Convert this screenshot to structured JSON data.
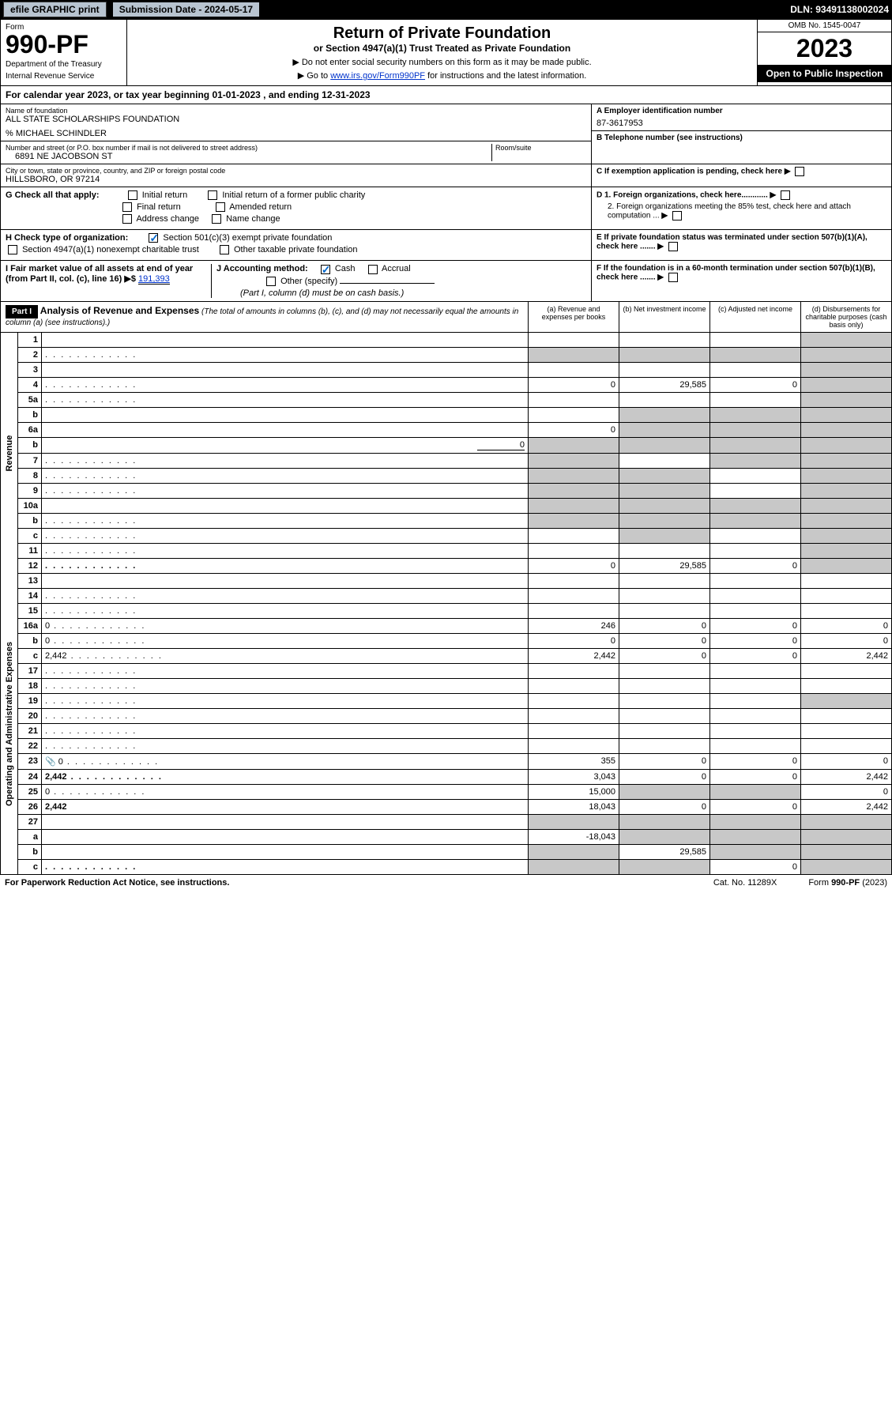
{
  "topbar": {
    "efile": "efile GRAPHIC print",
    "submission": "Submission Date - 2024-05-17",
    "dln": "DLN: 93491138002024"
  },
  "header": {
    "form_word": "Form",
    "form_num": "990-PF",
    "dept": "Department of the Treasury",
    "irs": "Internal Revenue Service",
    "title": "Return of Private Foundation",
    "subtitle": "or Section 4947(a)(1) Trust Treated as Private Foundation",
    "instr1": "▶ Do not enter social security numbers on this form as it may be made public.",
    "instr2_pre": "▶ Go to ",
    "instr2_link": "www.irs.gov/Form990PF",
    "instr2_post": " for instructions and the latest information.",
    "omb": "OMB No. 1545-0047",
    "year": "2023",
    "open": "Open to Public Inspection"
  },
  "cal_year": "For calendar year 2023, or tax year beginning 01-01-2023                          , and ending 12-31-2023",
  "info": {
    "name_label": "Name of foundation",
    "name": "ALL STATE SCHOLARSHIPS FOUNDATION",
    "care_of": "% MICHAEL SCHINDLER",
    "street_label": "Number and street (or P.O. box number if mail is not delivered to street address)",
    "street": "6891 NE JACOBSON ST",
    "room_label": "Room/suite",
    "city_label": "City or town, state or province, country, and ZIP or foreign postal code",
    "city": "HILLSBORO, OR  97214",
    "a_label": "A Employer identification number",
    "a_val": "87-3617953",
    "b_label": "B Telephone number (see instructions)",
    "c_label": "C If exemption application is pending, check here",
    "d1": "D 1. Foreign organizations, check here............",
    "d2": "2. Foreign organizations meeting the 85% test, check here and attach computation ...",
    "e_label": "E  If private foundation status was terminated under section 507(b)(1)(A), check here .......",
    "f_label": "F  If the foundation is in a 60-month termination under section 507(b)(1)(B), check here ......."
  },
  "g": {
    "label": "G Check all that apply:",
    "initial": "Initial return",
    "initial_former": "Initial return of a former public charity",
    "final": "Final return",
    "amended": "Amended return",
    "address": "Address change",
    "name": "Name change"
  },
  "h": {
    "label": "H Check type of organization:",
    "501c3": "Section 501(c)(3) exempt private foundation",
    "4947": "Section 4947(a)(1) nonexempt charitable trust",
    "other_taxable": "Other taxable private foundation"
  },
  "i": {
    "label": "I Fair market value of all assets at end of year (from Part II, col. (c), line 16)",
    "arrow": "▶$",
    "val": "191,393"
  },
  "j": {
    "label": "J Accounting method:",
    "cash": "Cash",
    "accrual": "Accrual",
    "other": "Other (specify)",
    "note": "(Part I, column (d) must be on cash basis.)"
  },
  "part1": {
    "label": "Part I",
    "title": "Analysis of Revenue and Expenses",
    "title_note": " (The total of amounts in columns (b), (c), and (d) may not necessarily equal the amounts in column (a) (see instructions).)",
    "col_a": "(a)   Revenue and expenses per books",
    "col_b": "(b)   Net investment income",
    "col_c": "(c)   Adjusted net income",
    "col_d": "(d)   Disbursements for charitable purposes (cash basis only)"
  },
  "sides": {
    "revenue": "Revenue",
    "expenses": "Operating and Administrative Expenses"
  },
  "rows": [
    {
      "n": "1",
      "d": "",
      "a": "",
      "b": "",
      "c": "",
      "shade_d": true
    },
    {
      "n": "2",
      "d": "",
      "dots": true,
      "a": "",
      "b": "",
      "c": "",
      "shade_all": true,
      "bold_not": true
    },
    {
      "n": "3",
      "d": "",
      "a": "",
      "b": "",
      "c": "",
      "shade_d": true
    },
    {
      "n": "4",
      "d": "",
      "dots": true,
      "a": "0",
      "b": "29,585",
      "c": "0",
      "shade_d": true
    },
    {
      "n": "5a",
      "d": "",
      "dots": true,
      "a": "",
      "b": "",
      "c": "",
      "shade_d": true
    },
    {
      "n": "b",
      "d": "",
      "a": "",
      "b": "",
      "c": "",
      "shade_bcd": true,
      "inline_box": true
    },
    {
      "n": "6a",
      "d": "",
      "a": "0",
      "b": "",
      "c": "",
      "shade_bcd": true
    },
    {
      "n": "b",
      "d": "",
      "a": "",
      "b": "",
      "c": "",
      "shade_abcd": true,
      "inline_val": "0"
    },
    {
      "n": "7",
      "d": "",
      "dots": true,
      "a": "",
      "b": "",
      "c": "",
      "shade_a": true,
      "shade_cd": true
    },
    {
      "n": "8",
      "d": "",
      "dots": true,
      "a": "",
      "b": "",
      "c": "",
      "shade_ab": true,
      "shade_d": true
    },
    {
      "n": "9",
      "d": "",
      "dots": true,
      "a": "",
      "b": "",
      "c": "",
      "shade_ab": true,
      "shade_d": true
    },
    {
      "n": "10a",
      "d": "",
      "a": "",
      "b": "",
      "c": "",
      "shade_abcd": true,
      "inline_box": true
    },
    {
      "n": "b",
      "d": "",
      "dots": true,
      "a": "",
      "b": "",
      "c": "",
      "shade_abcd": true,
      "inline_box": true
    },
    {
      "n": "c",
      "d": "",
      "dots": true,
      "a": "",
      "b": "",
      "c": "",
      "shade_b": true,
      "shade_d": true
    },
    {
      "n": "11",
      "d": "",
      "dots": true,
      "a": "",
      "b": "",
      "c": "",
      "shade_d": true
    },
    {
      "n": "12",
      "d": "",
      "dots": true,
      "bold": true,
      "a": "0",
      "b": "29,585",
      "c": "0",
      "shade_d": true
    },
    {
      "n": "13",
      "d": "",
      "a": "",
      "b": "",
      "c": ""
    },
    {
      "n": "14",
      "d": "",
      "dots": true,
      "a": "",
      "b": "",
      "c": ""
    },
    {
      "n": "15",
      "d": "",
      "dots": true,
      "a": "",
      "b": "",
      "c": ""
    },
    {
      "n": "16a",
      "d": "0",
      "dots": true,
      "a": "246",
      "b": "0",
      "c": "0"
    },
    {
      "n": "b",
      "d": "0",
      "dots": true,
      "a": "0",
      "b": "0",
      "c": "0"
    },
    {
      "n": "c",
      "d": "2,442",
      "dots": true,
      "a": "2,442",
      "b": "0",
      "c": "0"
    },
    {
      "n": "17",
      "d": "",
      "dots": true,
      "a": "",
      "b": "",
      "c": ""
    },
    {
      "n": "18",
      "d": "",
      "dots": true,
      "a": "",
      "b": "",
      "c": ""
    },
    {
      "n": "19",
      "d": "",
      "dots": true,
      "a": "",
      "b": "",
      "c": "",
      "shade_d": true
    },
    {
      "n": "20",
      "d": "",
      "dots": true,
      "a": "",
      "b": "",
      "c": ""
    },
    {
      "n": "21",
      "d": "",
      "dots": true,
      "a": "",
      "b": "",
      "c": ""
    },
    {
      "n": "22",
      "d": "",
      "dots": true,
      "a": "",
      "b": "",
      "c": ""
    },
    {
      "n": "23",
      "d": "0",
      "dots": true,
      "a": "355",
      "b": "0",
      "c": "0",
      "icon": true
    },
    {
      "n": "24",
      "d": "2,442",
      "dots": true,
      "bold": true,
      "a": "3,043",
      "b": "0",
      "c": "0",
      "two_line": true
    },
    {
      "n": "25",
      "d": "0",
      "dots": true,
      "a": "15,000",
      "b": "",
      "c": "",
      "shade_bc": true
    },
    {
      "n": "26",
      "d": "2,442",
      "bold": true,
      "a": "18,043",
      "b": "0",
      "c": "0",
      "two_line": true
    },
    {
      "n": "27",
      "d": "",
      "a": "",
      "b": "",
      "c": "",
      "shade_abcd": true
    },
    {
      "n": "a",
      "d": "",
      "bold": true,
      "a": "-18,043",
      "b": "",
      "c": "",
      "shade_bcd": true
    },
    {
      "n": "b",
      "d": "",
      "bold": true,
      "a": "",
      "b": "29,585",
      "c": "",
      "shade_a": true,
      "shade_cd": true
    },
    {
      "n": "c",
      "d": "",
      "dots": true,
      "bold": true,
      "a": "",
      "b": "",
      "c": "0",
      "shade_ab": true,
      "shade_d": true
    }
  ],
  "footer": {
    "left": "For Paperwork Reduction Act Notice, see instructions.",
    "mid": "Cat. No. 11289X",
    "right": "Form 990-PF (2023)"
  },
  "colors": {
    "topbar_bg": "#000000",
    "btn_bg": "#b8c4d0",
    "shade": "#c8c8c8",
    "link": "#0033cc",
    "check": "#0066cc"
  }
}
